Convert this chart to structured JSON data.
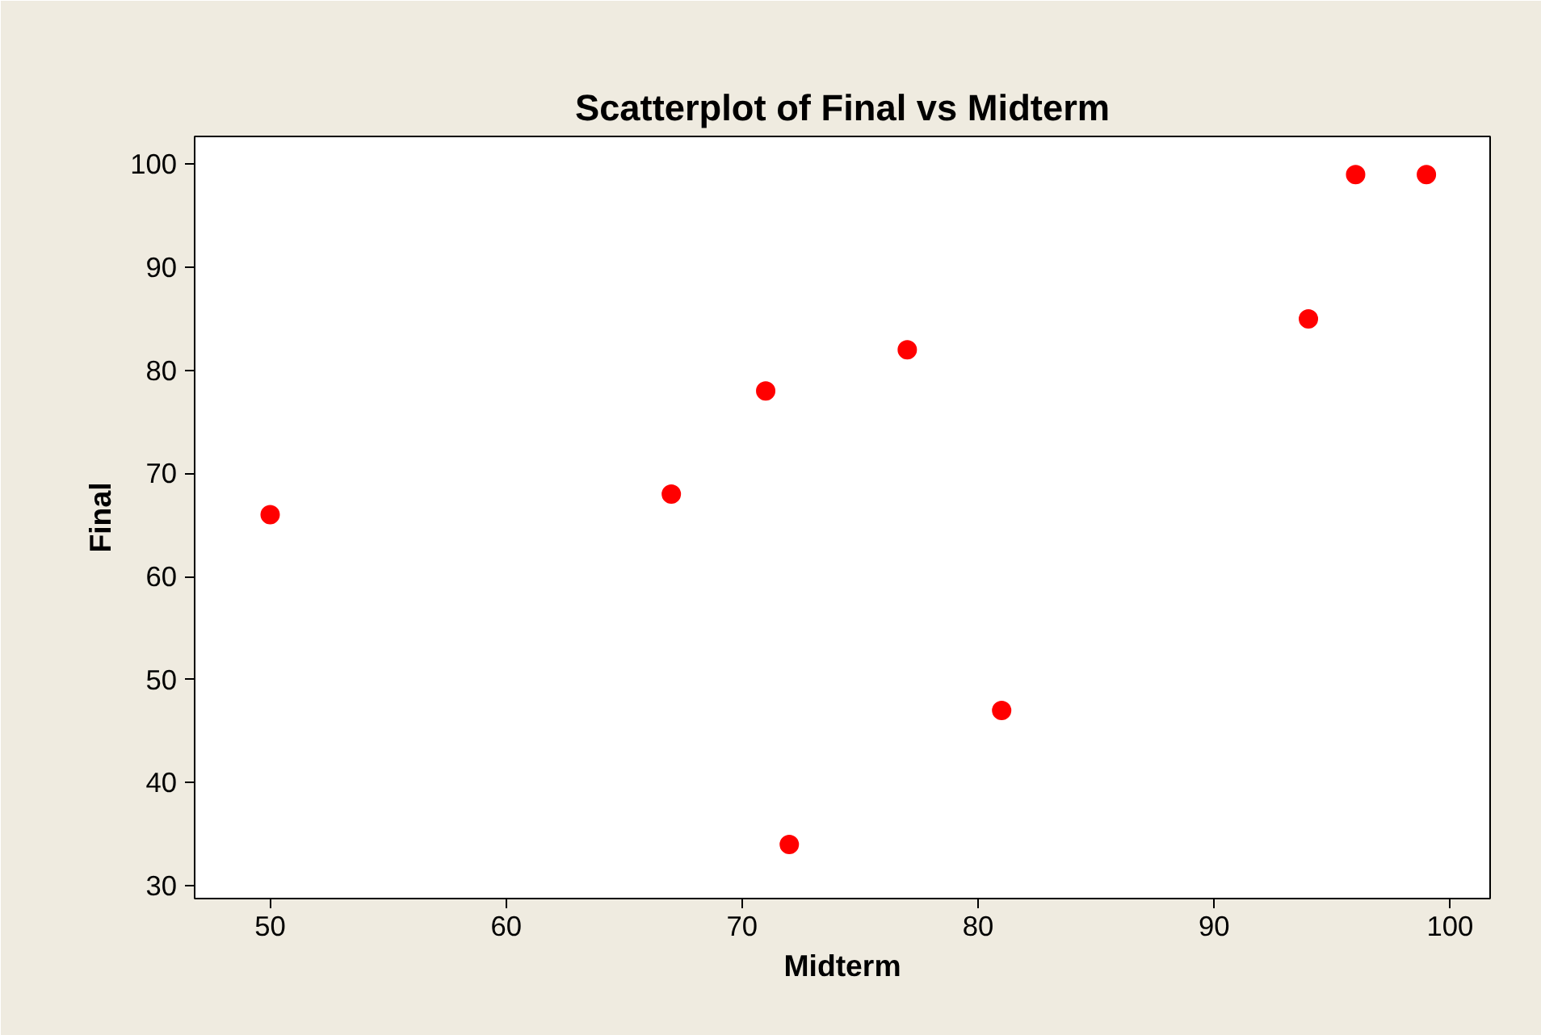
{
  "chart_data": {
    "type": "scatter",
    "title": "Scatterplot of Final vs Midterm",
    "xlabel": "Midterm",
    "ylabel": "Final",
    "x": [
      50,
      67,
      71,
      77,
      72,
      81,
      94,
      96,
      99
    ],
    "series": [
      {
        "color": "#ff0000",
        "values": [
          66,
          68,
          78,
          82,
          34,
          47,
          85,
          99,
          99
        ]
      }
    ],
    "xlim": [
      46.8,
      101.7
    ],
    "ylim": [
      28.75,
      102.7
    ],
    "xticks": [
      50,
      60,
      70,
      80,
      90,
      100
    ],
    "yticks": [
      30,
      40,
      50,
      60,
      70,
      80,
      90,
      100
    ],
    "grid": false,
    "marker": "circle"
  }
}
